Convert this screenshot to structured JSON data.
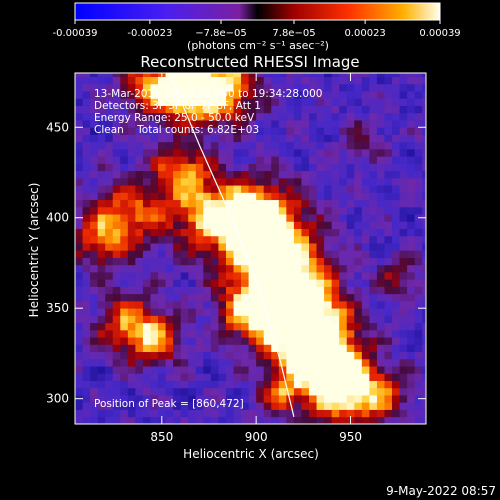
{
  "chart_data": {
    "type": "heatmap",
    "title": "Reconstructed RHESSI Image",
    "xlabel": "Heliocentric X (arcsec)",
    "ylabel": "Heliocentric Y (arcsec)",
    "xlim": [
      804,
      990
    ],
    "ylim": [
      286,
      480
    ],
    "x_ticks": [
      850,
      900,
      950
    ],
    "y_ticks": [
      300,
      350,
      400,
      450
    ],
    "colorbar": {
      "range": [
        -0.00039,
        0.00039
      ],
      "tick_values": [
        -0.00039,
        -0.00023,
        -7.8e-05,
        7.8e-05,
        0.00023,
        0.00039
      ],
      "tick_labels": [
        "-0.00039",
        "-0.00023",
        "−7.8e−05",
        "7.8e−05",
        "0.00023",
        "0.00039"
      ],
      "units": "(photons cm⁻² s⁻¹ asec⁻²)"
    },
    "annotations": [
      "13-Mar-2012 19:29:28.000 to 19:34:28.000",
      "Detectors: 3F 5F 6F 7F 8F, Att 1",
      "Energy Range: 25.0 - 50.0 keV",
      "Clean    Total counts: 6.82E+03"
    ],
    "peak_label": "Position of Peak = [860,472]",
    "limb_curve": [
      [
        854,
        480
      ],
      [
        870,
        440
      ],
      [
        887,
        400
      ],
      [
        902,
        360
      ],
      [
        913,
        320
      ],
      [
        920,
        290
      ]
    ],
    "peak": [
      860,
      472
    ]
  },
  "timestamp": "9-May-2022 08:57"
}
